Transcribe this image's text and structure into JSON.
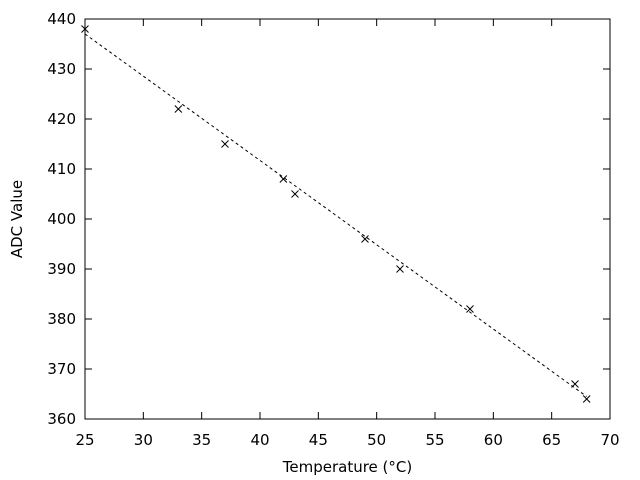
{
  "chart_data": {
    "type": "scatter",
    "xlabel": "Temperature (°C)",
    "ylabel": "ADC Value",
    "xlim": [
      25,
      70
    ],
    "ylim": [
      360,
      440
    ],
    "x_ticks": [
      "25",
      "30",
      "35",
      "40",
      "45",
      "50",
      "55",
      "60",
      "65",
      "70"
    ],
    "y_ticks": [
      "360",
      "370",
      "380",
      "390",
      "400",
      "410",
      "420",
      "430",
      "440"
    ],
    "grid": false,
    "legend": false,
    "marker": "x",
    "series": [
      {
        "points": [
          {
            "x": 25,
            "y": 438
          },
          {
            "x": 33,
            "y": 422
          },
          {
            "x": 37,
            "y": 415
          },
          {
            "x": 42,
            "y": 408
          },
          {
            "x": 43,
            "y": 405
          },
          {
            "x": 49,
            "y": 396
          },
          {
            "x": 52,
            "y": 390
          },
          {
            "x": 58,
            "y": 382
          },
          {
            "x": 67,
            "y": 367
          },
          {
            "x": 68,
            "y": 364
          }
        ]
      }
    ],
    "fit_line": {
      "style": "dashed",
      "from": {
        "x": 25,
        "y": 437
      },
      "to": {
        "x": 68,
        "y": 364.5
      }
    },
    "colors": {
      "axis": "#000000",
      "marker": "#000000",
      "line": "#000000",
      "background": "#ffffff"
    }
  }
}
